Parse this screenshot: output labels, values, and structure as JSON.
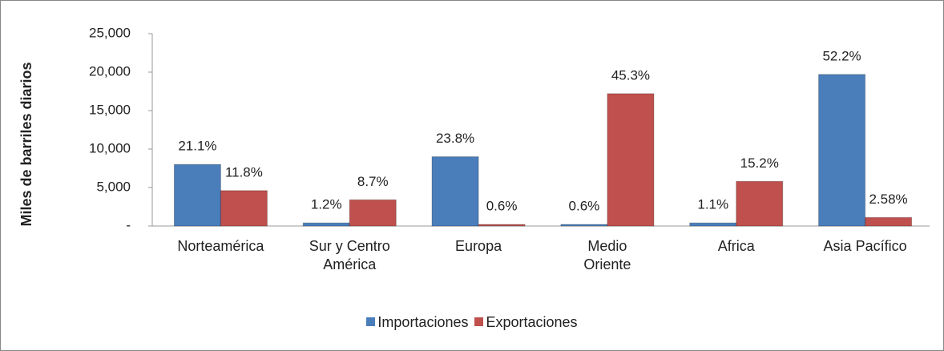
{
  "chart_data": {
    "type": "bar",
    "y_label": "Miles de barriles diarios",
    "categories": [
      "Norteamérica",
      "Sur y Centro\nAmérica",
      "Europa",
      "Medio\nOriente",
      "Africa",
      "Asia Pacífico"
    ],
    "series": [
      {
        "name": "Importaciones",
        "color": "#4a7ebb",
        "values": [
          8000,
          400,
          9000,
          200,
          400,
          19700
        ],
        "shares": [
          "21.1%",
          "1.2%",
          "23.8%",
          "0.6%",
          "1.1%",
          "52.2%"
        ]
      },
      {
        "name": "Exportaciones",
        "color": "#c0504d",
        "values": [
          4600,
          3400,
          200,
          17200,
          5800,
          1100
        ],
        "shares": [
          "11.8%",
          "8.7%",
          "0.6%",
          "45.3%",
          "15.2%",
          "2.58%"
        ]
      }
    ],
    "ylim": [
      0,
      25000
    ],
    "yticks": [
      {
        "value": 0,
        "label": "-"
      },
      {
        "value": 5000,
        "label": "5,000"
      },
      {
        "value": 10000,
        "label": "10,000"
      },
      {
        "value": 15000,
        "label": "15,000"
      },
      {
        "value": 20000,
        "label": "20,000"
      },
      {
        "value": 25000,
        "label": "25,000"
      }
    ],
    "legend": "bottom"
  }
}
